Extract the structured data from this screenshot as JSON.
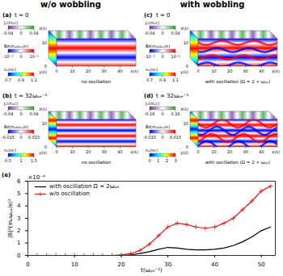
{
  "columns": [
    "w/o wobbling",
    "with wobbling"
  ],
  "panels": [
    {
      "label": "(a)",
      "time": "t = 0",
      "note": "no oscillation",
      "axes": {
        "x": {
          "label": "x(λ)",
          "range": [
            0,
            50
          ],
          "ticks": [
            0,
            10,
            20,
            30,
            40
          ]
        },
        "y": {
          "label": "y(λ)",
          "range": [
            0,
            12
          ],
          "ticks": [
            0,
            10
          ]
        },
        "z": {
          "label": "z(λ)"
        }
      },
      "colorbars": [
        {
          "title": "Jₓ(mₑc)",
          "range": [
            -0.04,
            0.04
          ],
          "ticks": [
            -0.04,
            0,
            0.04
          ],
          "colors": [
            "#6a3d9a",
            "#ffffff",
            "#2ca02c"
          ]
        },
        {
          "title": "Bz(mₑωₚₑ/e)",
          "range": [
            -0.001,
            0.001
          ],
          "ticks": [
            {
              "value": -0.001,
              "label": "-10⁻³"
            },
            0,
            {
              "value": 0.001,
              "label": "10⁻³"
            }
          ],
          "colors": [
            "#0000ff",
            "#ffffff",
            "#ff0000"
          ]
        },
        {
          "title": "nₑ(nc)",
          "range": [
            0.7,
            1.1
          ],
          "ticks": [
            0.7,
            0.9,
            1.1
          ],
          "colors": [
            "#0000ff",
            "#00ffff",
            "#ffff00",
            "#ff0000"
          ]
        }
      ]
    },
    {
      "label": "(b)",
      "time": "t = 32ωₚₑ⁻¹",
      "note": "no oscillation",
      "axes": {
        "x": {
          "label": "x(λ)",
          "range": [
            0,
            50
          ],
          "ticks": [
            0,
            10,
            20,
            30,
            40
          ]
        },
        "y": {
          "label": "y(λ)",
          "range": [
            0,
            12
          ],
          "ticks": [
            0,
            10
          ]
        },
        "z": {
          "label": "z(λ)"
        }
      },
      "colorbars": [
        {
          "title": "Jₓ(mₑc)",
          "range": [
            -0.04,
            0.04
          ],
          "ticks": [
            -0.04,
            0,
            0.04
          ],
          "colors": [
            "#6a3d9a",
            "#ffffff",
            "#2ca02c"
          ]
        },
        {
          "title": "Bz(mₑωₚₑ/e)",
          "range": [
            -0.015,
            0.015
          ],
          "ticks": [
            -0.015,
            0,
            0.015
          ],
          "colors": [
            "#0000ff",
            "#ffffff",
            "#ff0000"
          ]
        },
        {
          "title": "nₑ(nc)",
          "range": [
            0.5,
            1.5
          ],
          "ticks": [
            0.5,
            1,
            1.5
          ],
          "colors": [
            "#0000ff",
            "#00ffff",
            "#ffff00",
            "#ff0000"
          ]
        }
      ]
    },
    {
      "label": "(c)",
      "time": "t = 0",
      "note": "with oscillation (Ω = 2 × ωₚₑ)",
      "axes": {
        "x": {
          "label": "x(λ)",
          "range": [
            0,
            50
          ],
          "ticks": [
            0,
            10,
            20,
            30,
            40
          ]
        },
        "y": {
          "label": "y(λ)",
          "range": [
            0,
            12
          ],
          "ticks": [
            0,
            10
          ]
        },
        "z": {
          "label": "z(λ)"
        }
      },
      "colorbars": [
        {
          "title": "Jₓ(mₑc)",
          "range": [
            -0.04,
            0.04
          ],
          "ticks": [
            -0.04,
            0,
            0.04
          ],
          "colors": [
            "#6a3d9a",
            "#ffffff",
            "#2ca02c"
          ]
        },
        {
          "title": "Bz(mₑωₚₑ/e)",
          "range": [
            -0.001,
            0.001
          ],
          "ticks": [
            {
              "value": -0.001,
              "label": "-10⁻³"
            },
            0,
            {
              "value": 0.001,
              "label": "10⁻³"
            }
          ],
          "colors": [
            "#0000ff",
            "#ffffff",
            "#ff0000"
          ]
        },
        {
          "title": "nₑ(nc)",
          "range": [
            0.7,
            1.1
          ],
          "ticks": [
            0.7,
            0.9,
            1.1
          ],
          "colors": [
            "#0000ff",
            "#00ffff",
            "#ffff00",
            "#ff0000"
          ]
        }
      ]
    },
    {
      "label": "(d)",
      "time": "t = 32ωₚₑ⁻¹",
      "note": "with oscillation (Ω = 2 × ωₚₑ)",
      "axes": {
        "x": {
          "label": "x(λ)",
          "range": [
            0,
            50
          ],
          "ticks": [
            0,
            10,
            20,
            30,
            40
          ]
        },
        "y": {
          "label": "y(λ)",
          "range": [
            0,
            12
          ],
          "ticks": [
            0,
            10
          ]
        },
        "z": {
          "label": "z(λ)"
        }
      },
      "colorbars": [
        {
          "title": "Jₓ(mₑc)",
          "range": [
            -0.16,
            0.16
          ],
          "ticks": [
            -0.16,
            0,
            0.16
          ],
          "colors": [
            "#6a3d9a",
            "#ffffff",
            "#2ca02c"
          ]
        },
        {
          "title": "Bz(mₑωₚₑ/e)",
          "range": [
            -0.015,
            0.015
          ],
          "ticks": [
            -0.015,
            0,
            0.015
          ],
          "colors": [
            "#0000ff",
            "#ffffff",
            "#ff0000"
          ]
        },
        {
          "title": "nₑ(nc)",
          "range": [
            0,
            3
          ],
          "ticks": [
            0,
            1,
            2,
            3
          ],
          "colors": [
            "#0000ff",
            "#00ffff",
            "#ffff00",
            "#ff0000"
          ]
        }
      ]
    }
  ],
  "chart_data": {
    "type": "line",
    "title": "(e)",
    "x_label": "t(ωₚₑ⁻¹)",
    "y_label": "|B|²(mₑωₚₑ/e)²",
    "annotations": [
      "×10⁻⁴"
    ],
    "x": [
      0,
      2,
      4,
      6,
      8,
      10,
      12,
      14,
      16,
      18,
      20,
      22,
      24,
      26,
      28,
      30,
      32,
      34,
      36,
      38,
      40,
      42,
      44,
      46,
      48,
      50,
      52
    ],
    "series": [
      {
        "name": "with oscillation Ω = 2ωₚₑ",
        "color": "#000000",
        "line_style": "solid",
        "values": [
          0,
          0,
          0,
          0,
          0,
          0,
          0,
          0,
          0,
          0,
          0,
          0.05,
          0.15,
          0.3,
          0.5,
          0.65,
          0.6,
          0.5,
          0.45,
          0.45,
          0.5,
          0.6,
          0.8,
          1.1,
          1.5,
          2.0,
          2.3
        ]
      },
      {
        "name": "w/o oscillation",
        "color": "#e41a1c",
        "line_style": "solid",
        "marker": "plus",
        "values": [
          0,
          0,
          0,
          0,
          0,
          0,
          0,
          0,
          0,
          0,
          0.05,
          0.15,
          0.4,
          0.9,
          1.6,
          2.3,
          2.6,
          2.5,
          2.3,
          2.2,
          2.3,
          2.6,
          3.0,
          3.7,
          4.4,
          5.2,
          5.6
        ]
      }
    ],
    "xlim": [
      0,
      53
    ],
    "xticks": [
      0,
      10,
      20,
      30,
      40,
      50
    ],
    "ylim": [
      0,
      6
    ],
    "yticks": [
      0,
      1,
      2,
      3,
      4,
      5,
      6
    ],
    "grid": false,
    "legend": "upper left"
  }
}
